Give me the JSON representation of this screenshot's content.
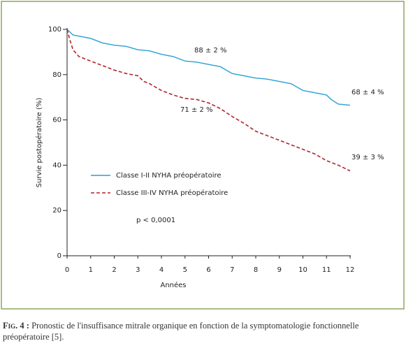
{
  "chart_data": {
    "type": "line",
    "xlabel": "Années",
    "ylabel": "Survie postopératoire (%)",
    "xlim": [
      0,
      12
    ],
    "ylim": [
      0,
      100
    ],
    "xticks": [
      0,
      1,
      2,
      3,
      4,
      5,
      6,
      7,
      8,
      9,
      10,
      11,
      12
    ],
    "yticks": [
      0,
      20,
      40,
      60,
      80,
      100
    ],
    "series": [
      {
        "name": "Classe I-II NYHA préopératoire",
        "color": "#2b9fd2",
        "dash": false,
        "x": [
          0,
          0.25,
          0.5,
          1,
          1.5,
          2,
          2.5,
          3,
          3.5,
          4,
          4.5,
          5,
          5.5,
          6,
          6.5,
          7,
          7.5,
          8,
          8.5,
          9,
          9.5,
          10,
          10.5,
          11,
          11.2,
          11.5,
          12
        ],
        "values": [
          100,
          97.5,
          97,
          96,
          94,
          93,
          92.5,
          91,
          90.5,
          89,
          88,
          86,
          85.5,
          84.5,
          83.5,
          80.5,
          79.5,
          78.5,
          78,
          77,
          76,
          73,
          72,
          71,
          69,
          67,
          66.5
        ]
      },
      {
        "name": "Classe III-IV NYHA préopératoire",
        "color": "#b0262e",
        "dash": true,
        "x": [
          0,
          0.1,
          0.25,
          0.5,
          1,
          1.5,
          2,
          2.5,
          3,
          3.25,
          3.5,
          4,
          4.5,
          5,
          5.5,
          6,
          6.5,
          7,
          7.5,
          8,
          8.5,
          9,
          9.5,
          10,
          10.5,
          11,
          11.5,
          12
        ],
        "values": [
          100,
          96,
          91,
          88,
          86,
          84,
          82,
          80.5,
          79.5,
          77,
          76,
          73,
          71,
          69.5,
          69,
          67.5,
          65,
          61.5,
          58.5,
          55,
          53,
          51,
          49,
          47,
          45,
          42,
          40,
          37.5
        ]
      }
    ],
    "annotations": [
      "88 ± 2 %",
      "71 ± 2 %",
      "68 ± 4 %",
      "39 ± 3 %",
      "p < 0,0001"
    ]
  },
  "caption": {
    "label": "Fig. 4 :",
    "text": "Pronostic de l'insuffisance mitrale organique en fonction de la symptomatologie fonctionnelle préopératoire [5]."
  }
}
